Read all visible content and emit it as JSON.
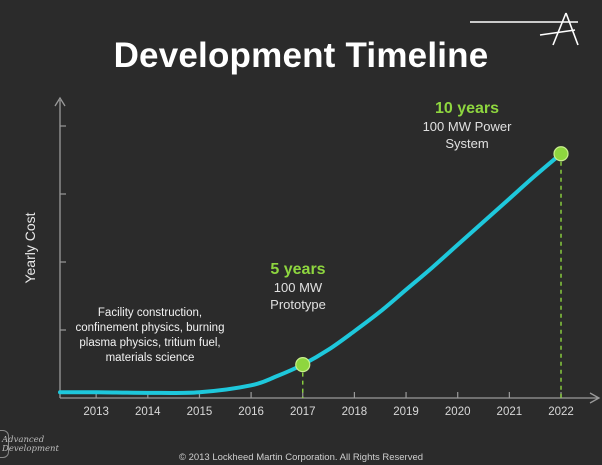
{
  "slide": {
    "title": "Development Timeline",
    "footer": "© 2013 Lockheed Martin Corporation.  All Rights Reserved",
    "logo_lines": [
      "Advanced",
      "Development"
    ],
    "logo_icon": "lockheed-star-icon"
  },
  "colors": {
    "background": "#2b2b2b",
    "curve": "#1ec8dc",
    "milestone": "#8ed63f",
    "axis": "#9a9a9a"
  },
  "chart_data": {
    "type": "line",
    "title": "Development Timeline",
    "xlabel": "",
    "ylabel": "Yearly Cost",
    "x_ticks": [
      "2013",
      "2014",
      "2015",
      "2016",
      "2017",
      "2018",
      "2019",
      "2020",
      "2021",
      "2022"
    ],
    "xlim": [
      2012.3,
      2022.6
    ],
    "y_ticks_count": 4,
    "series": [
      {
        "points": [
          {
            "x": 2012.3,
            "y": 0.05
          },
          {
            "x": 2013.0,
            "y": 0.05
          },
          {
            "x": 2014.0,
            "y": 0.045
          },
          {
            "x": 2015.0,
            "y": 0.05
          },
          {
            "x": 2016.0,
            "y": 0.11
          },
          {
            "x": 2016.5,
            "y": 0.19
          },
          {
            "x": 2017.0,
            "y": 0.29
          },
          {
            "x": 2017.5,
            "y": 0.42
          },
          {
            "x": 2018.0,
            "y": 0.58
          },
          {
            "x": 2018.5,
            "y": 0.75
          },
          {
            "x": 2019.0,
            "y": 0.94
          },
          {
            "x": 2019.5,
            "y": 1.13
          },
          {
            "x": 2020.0,
            "y": 1.33
          },
          {
            "x": 2020.5,
            "y": 1.53
          },
          {
            "x": 2021.0,
            "y": 1.73
          },
          {
            "x": 2021.5,
            "y": 1.93
          },
          {
            "x": 2022.0,
            "y": 2.12
          }
        ]
      }
    ],
    "ylim": [
      0,
      2.5
    ],
    "milestones": [
      {
        "x": 2017,
        "y": 0.29,
        "label": "5 years",
        "desc": [
          "100 MW",
          "Prototype"
        ]
      },
      {
        "x": 2022,
        "y": 2.12,
        "label": "10 years",
        "desc": [
          "100 MW Power",
          "System"
        ]
      }
    ],
    "annotations": [
      {
        "lines": [
          "Facility construction,",
          "confinement physics, burning",
          "plasma physics, tritium fuel,",
          "materials science"
        ]
      }
    ]
  }
}
